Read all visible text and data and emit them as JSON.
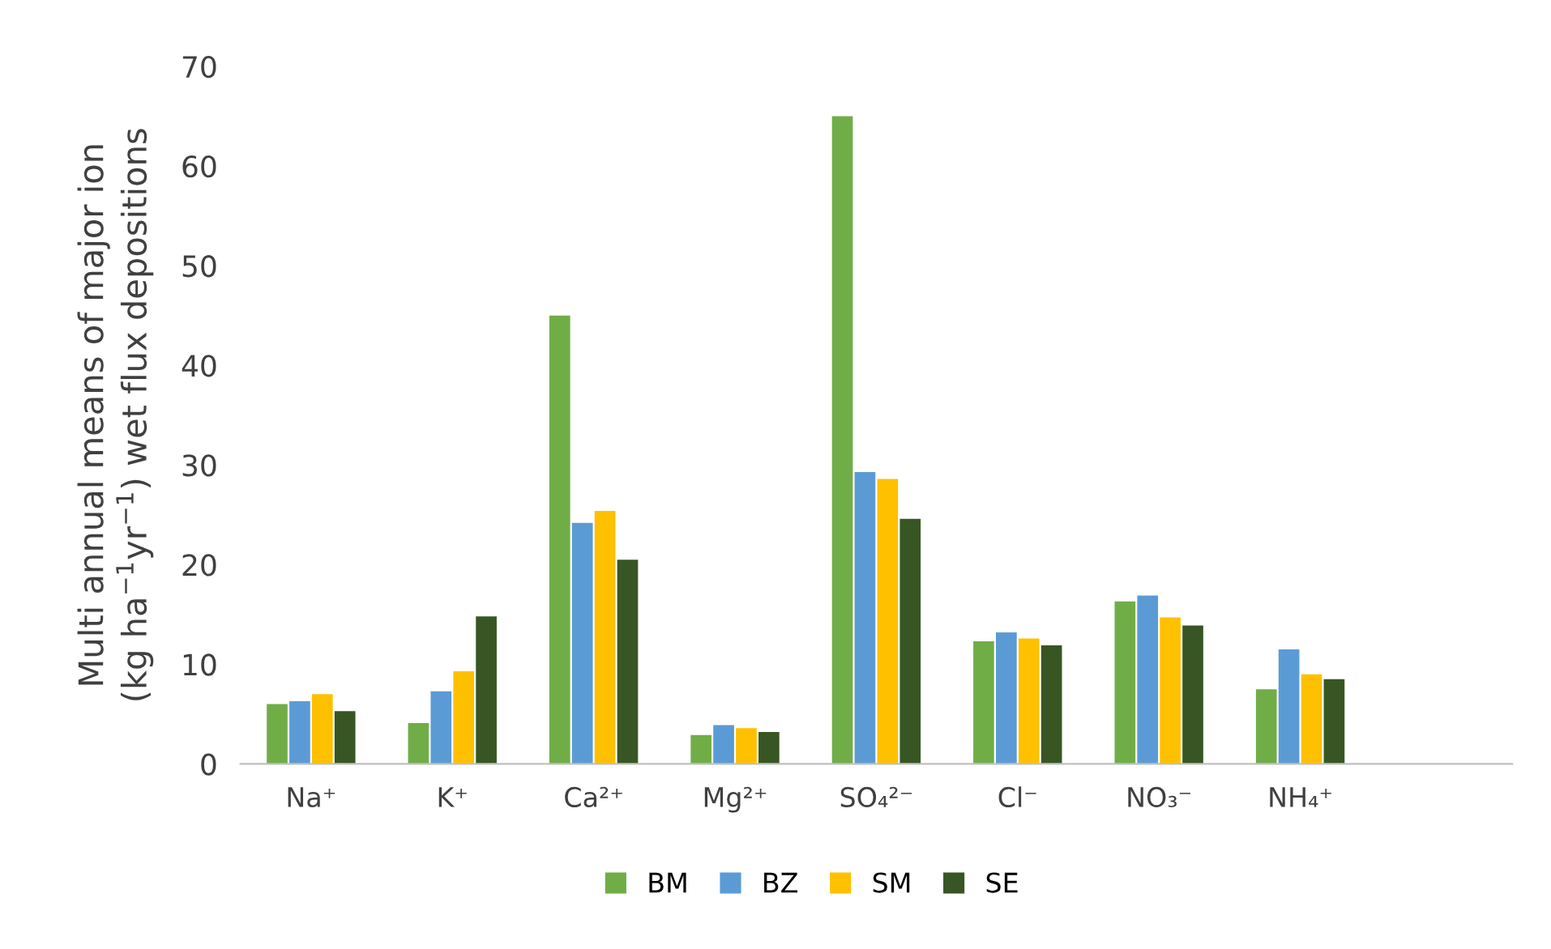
{
  "chart_data": {
    "type": "bar",
    "ylabel": "Multi annual means of major ion\n(kg ha$^{−1}$yr$^{−1}$) wet flux depositions",
    "categories": [
      "Na⁺",
      "K⁺",
      "Ca²⁺",
      "Mg²⁺",
      "SO₄²⁻",
      "Cl⁻",
      "NO₃⁻",
      "NH₄⁺",
      null
    ],
    "series": [
      {
        "name": "BM",
        "color": "#70ad47",
        "values": [
          6.0,
          4.1,
          45.0,
          2.9,
          65.0,
          12.3,
          16.3,
          7.5,
          null
        ]
      },
      {
        "name": "BZ",
        "color": "#5b9bd5",
        "values": [
          6.3,
          7.3,
          24.2,
          3.9,
          29.3,
          13.2,
          16.9,
          11.5,
          null
        ]
      },
      {
        "name": "SM",
        "color": "#ffc000",
        "values": [
          7.0,
          9.3,
          25.4,
          3.6,
          28.6,
          12.6,
          14.7,
          9.0,
          null
        ]
      },
      {
        "name": "SE",
        "color": "#375623",
        "values": [
          5.3,
          14.8,
          20.5,
          3.2,
          24.6,
          11.9,
          13.9,
          8.5,
          null
        ]
      }
    ],
    "ylim": [
      0,
      70
    ],
    "yticks": [
      0,
      10,
      20,
      30,
      40,
      50,
      60,
      70
    ],
    "grid": false,
    "legend": "bottom"
  }
}
